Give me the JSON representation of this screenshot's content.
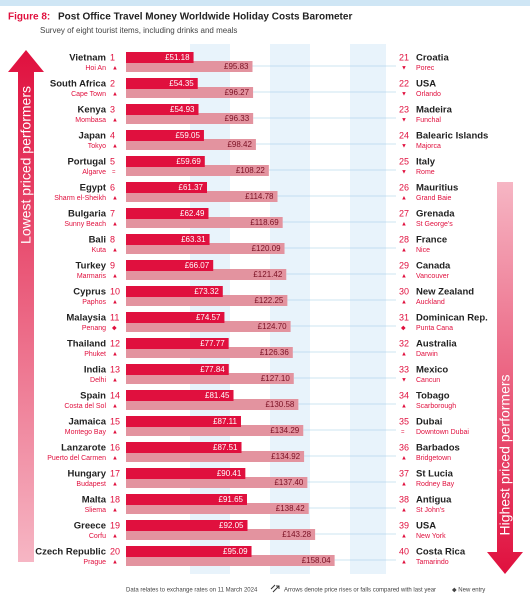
{
  "chart_data": {
    "type": "bar",
    "figure_label": "Figure 8:",
    "title": "Post Office Travel Money Worldwide Holiday Costs Barometer",
    "subtitle": "Survey of eight tourist items, including drinks and meals",
    "left_label": "Lowest priced performers",
    "right_label": "Highest priced performers",
    "left": {
      "ranks": [
        1,
        2,
        3,
        4,
        5,
        6,
        7,
        8,
        9,
        10,
        11,
        12,
        13,
        14,
        15,
        16,
        17,
        18,
        19,
        20
      ],
      "categories": [
        "Vietnam",
        "South Africa",
        "Kenya",
        "Japan",
        "Portugal",
        "Egypt",
        "Bulgaria",
        "Bali",
        "Turkey",
        "Cyprus",
        "Malaysia",
        "Thailand",
        "India",
        "Spain",
        "Jamaica",
        "Lanzarote",
        "Hungary",
        "Malta",
        "Greece",
        "Czech Republic"
      ],
      "cities": [
        "Hoi An",
        "Cape Town",
        "Mombasa",
        "Tokyo",
        "Algarve",
        "Sharm el-Sheikh",
        "Sunny Beach",
        "Kuta",
        "Marmaris",
        "Paphos",
        "Penang",
        "Phuket",
        "Delhi",
        "Costa del Sol",
        "Montego Bay",
        "Puerto del Carmen",
        "Budapest",
        "Sliema",
        "Corfu",
        "Prague"
      ],
      "trends": [
        "▲",
        "▲",
        "▲",
        "▲",
        "=",
        "▲",
        "▲",
        "▲",
        "▲",
        "▲",
        "◆",
        "▲",
        "▲",
        "▲",
        "▲",
        "▲",
        "▲",
        "▲",
        "▲",
        "▲"
      ]
    },
    "right": {
      "ranks": [
        21,
        22,
        23,
        24,
        25,
        26,
        27,
        28,
        29,
        30,
        31,
        32,
        33,
        34,
        35,
        36,
        37,
        38,
        39,
        40
      ],
      "categories": [
        "Croatia",
        "USA",
        "Madeira",
        "Balearic Islands",
        "Italy",
        "Mauritius",
        "Grenada",
        "France",
        "Canada",
        "New Zealand",
        "Dominican Rep.",
        "Australia",
        "Mexico",
        "Tobago",
        "Dubai",
        "Barbados",
        "St Lucia",
        "Antigua",
        "USA",
        "Costa Rica"
      ],
      "cities": [
        "Porec",
        "Orlando",
        "Funchal",
        "Majorca",
        "Rome",
        "Grand Baie",
        "St George's",
        "Nice",
        "Vancouver",
        "Auckland",
        "Punta Cana",
        "Darwin",
        "Cancun",
        "Scarborough",
        "Downtown Dubai",
        "Bridgetown",
        "Rodney Bay",
        "St John's",
        "New York",
        "Tamarindo"
      ],
      "trends": [
        "▼",
        "▼",
        "▼",
        "▼",
        "▼",
        "▲",
        "▲",
        "▲",
        "▲",
        "▲",
        "◆",
        "▲",
        "▼",
        "▲",
        "=",
        "▲",
        "▲",
        "▲",
        "▲",
        "▲"
      ]
    },
    "series": [
      {
        "color": "#e0103e",
        "values": [
          51.18,
          54.35,
          54.93,
          59.05,
          59.69,
          61.37,
          62.49,
          63.31,
          66.07,
          73.32,
          74.57,
          77.77,
          77.84,
          81.45,
          87.11,
          87.51,
          90.41,
          91.65,
          92.05,
          95.09
        ],
        "value_labels": [
          "£51.18",
          "£54.35",
          "£54.93",
          "£59.05",
          "£59.69",
          "£61.37",
          "£62.49",
          "£63.31",
          "£66.07",
          "£73.32",
          "£74.57",
          "£77.77",
          "£77.84",
          "£81.45",
          "£87.11",
          "£87.51",
          "£90.41",
          "£91.65",
          "£92.05",
          "£95.09"
        ]
      },
      {
        "color": "#e3939f",
        "values": [
          95.83,
          96.27,
          96.33,
          98.42,
          108.22,
          114.78,
          118.69,
          120.09,
          121.42,
          122.25,
          124.7,
          126.36,
          127.1,
          130.58,
          134.29,
          134.92,
          137.4,
          138.42,
          143.28,
          158.04
        ],
        "value_labels": [
          "£95.83",
          "£96.27",
          "£96.33",
          "£98.42",
          "£108.22",
          "£114.78",
          "£118.69",
          "£120.09",
          "£121.42",
          "£122.25",
          "£124.70",
          "£126.36",
          "£127.10",
          "£130.58",
          "£134.29",
          "£134.92",
          "£137.40",
          "£138.42",
          "£143.28",
          "£158.04"
        ]
      }
    ],
    "footnote": "Data relates to exchange rates on 11 March 2024",
    "arrow_note": "Arrows denote price rises or falls compared with last year",
    "new_entry_note": "◆ New entry"
  }
}
